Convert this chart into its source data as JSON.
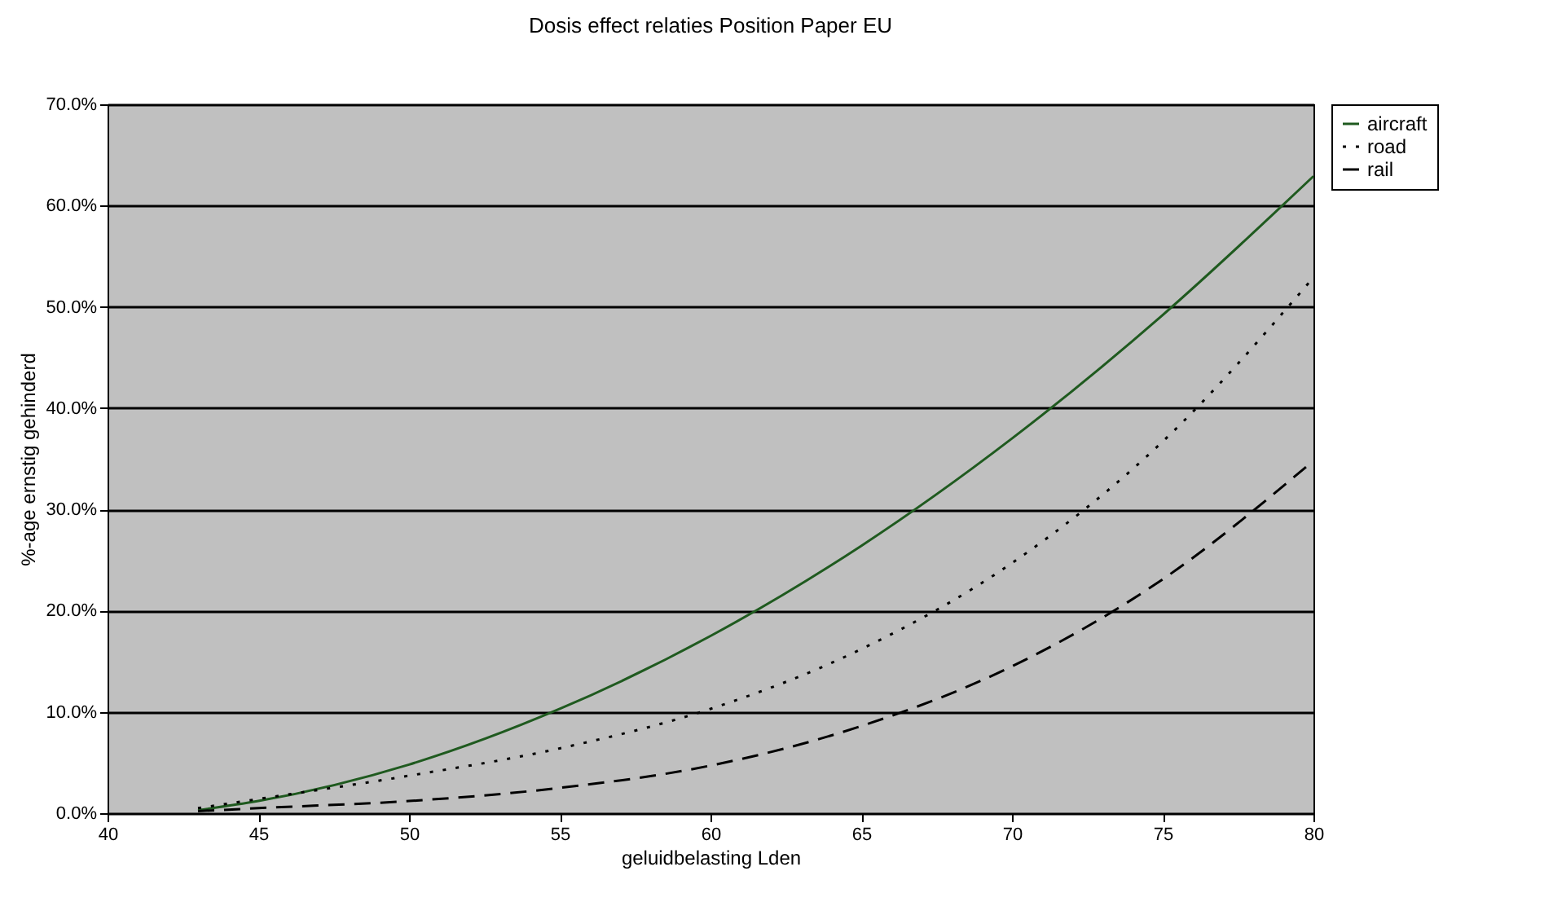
{
  "chart_data": {
    "type": "line",
    "title": "Dosis effect relaties Position Paper EU",
    "xlabel": "geluidbelasting Lden",
    "ylabel": "%-age ernstig gehinderd",
    "x": [
      43,
      45,
      50,
      55,
      60,
      65,
      70,
      75,
      80
    ],
    "series": [
      {
        "name": "aircraft",
        "color": "#1f5a1f",
        "line_style": "solid",
        "values": [
          0.3,
          1.2,
          4.8,
          10.3,
          17.5,
          26.4,
          37.0,
          49.2,
          62.9
        ]
      },
      {
        "name": "road",
        "color": "#000000",
        "line_style": "dotted",
        "values": [
          0.5,
          1.4,
          3.7,
          6.4,
          10.3,
          16.2,
          24.7,
          36.7,
          52.9
        ]
      },
      {
        "name": "rail",
        "color": "#000000",
        "line_style": "dashed",
        "values": [
          0.2,
          0.5,
          1.2,
          2.5,
          4.7,
          8.6,
          14.5,
          23.1,
          34.8
        ]
      }
    ],
    "xlim": [
      40,
      80
    ],
    "xticks": [
      40,
      45,
      50,
      55,
      60,
      65,
      70,
      75,
      80
    ],
    "ylim": [
      0,
      70
    ],
    "yticks": [
      {
        "value": 0,
        "label": "0.0%"
      },
      {
        "value": 10,
        "label": "10.0%"
      },
      {
        "value": 20,
        "label": "20.0%"
      },
      {
        "value": 30,
        "label": "30.0%"
      },
      {
        "value": 40,
        "label": "40.0%"
      },
      {
        "value": 50,
        "label": "50.0%"
      },
      {
        "value": 60,
        "label": "60.0%"
      },
      {
        "value": 70,
        "label": "70.0%"
      }
    ],
    "grid": "y",
    "legend": "right",
    "marker": "none"
  }
}
